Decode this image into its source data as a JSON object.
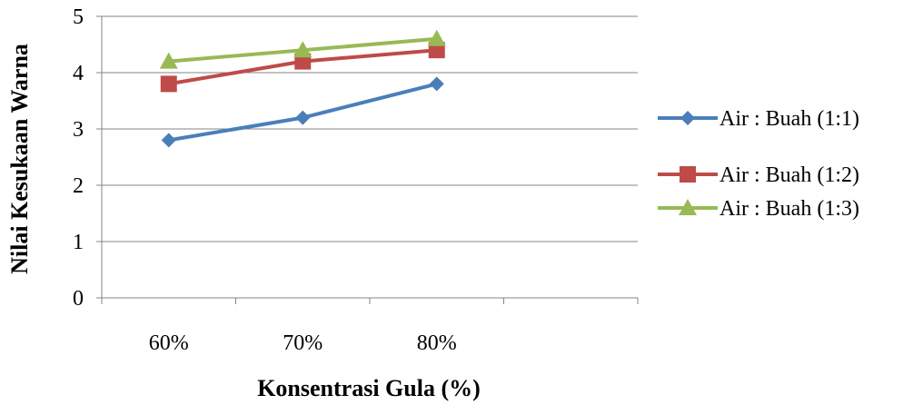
{
  "chart_data": {
    "type": "line",
    "categories": [
      "60%",
      "70%",
      "80%"
    ],
    "series": [
      {
        "name": "Air : Buah (1:1)",
        "values": [
          2.8,
          3.2,
          3.8
        ],
        "color": "#4A7EBB",
        "marker": "diamond"
      },
      {
        "name": "Air : Buah (1:2)",
        "values": [
          3.8,
          4.2,
          4.4
        ],
        "color": "#BE4B48",
        "marker": "square"
      },
      {
        "name": "Air : Buah (1:3)",
        "values": [
          4.2,
          4.4,
          4.6
        ],
        "color": "#98B954",
        "marker": "triangle"
      }
    ],
    "xlabel": "Konsentrasi Gula (%)",
    "ylabel": "Nilai Kesukaan Warna",
    "ylim": [
      0,
      5
    ],
    "yticks": [
      0,
      1,
      2,
      3,
      4,
      5
    ],
    "grid": true,
    "legend": "right"
  }
}
